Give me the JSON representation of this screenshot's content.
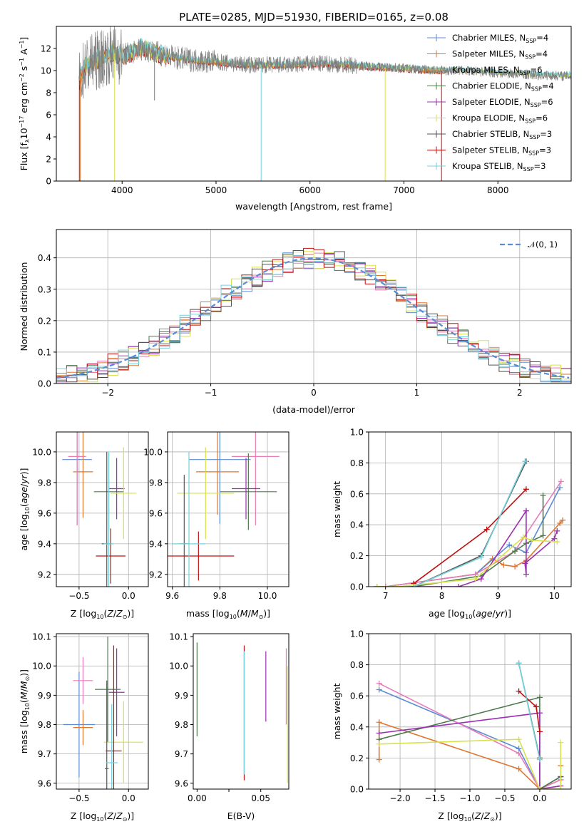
{
  "figure": {
    "title": "PLATE=0285, MJD=51930, FIBERID=0165, z=0.08"
  },
  "colors": {
    "Chabrier MILES": "#5b8bd5",
    "Salpeter MILES": "#dd7733",
    "Kroupa MILES": "#d4a04a",
    "Chabrier ELODIE": "#4c7a4c",
    "Salpeter ELODIE": "#9b30b0",
    "Kroupa ELODIE": "#d8e24a",
    "Chabrier STELIB": "#555555",
    "Salpeter STELIB": "#c01010",
    "Kroupa STELIB": "#74d2dc",
    "normal_fit": "#5b8bd5",
    "data": "#7f7f7f"
  },
  "chart_data": [
    {
      "id": "spectrum",
      "type": "line",
      "title": "PLATE=0285, MJD=51930, FIBERID=0165, z=0.08",
      "xlabel": "wavelength [Angstrom, rest frame]",
      "ylabel": "Flux [f_λ10^-17 erg cm^-2 s^-1 A^-1]",
      "xlim": [
        3300,
        8780
      ],
      "ylim": [
        0,
        14
      ],
      "xticks": [
        4000,
        5000,
        6000,
        7000,
        8000
      ],
      "yticks": [
        0,
        2,
        4,
        6,
        8,
        10,
        12
      ],
      "grid": false,
      "legend": "right",
      "legend_entries": [
        {
          "label": "Chabrier MILES, N",
          "sub": "SSP",
          "suffix": "=4",
          "color": "#5b8bd5"
        },
        {
          "label": "Salpeter MILES, N",
          "sub": "SSP",
          "suffix": "=4",
          "color": "#dd7733"
        },
        {
          "label": "Kroupa MILES, N",
          "sub": "SSP",
          "suffix": "=6",
          "color": "#d4a04a"
        },
        {
          "label": "Chabrier ELODIE, N",
          "sub": "SSP",
          "suffix": "=4",
          "color": "#4c7a4c"
        },
        {
          "label": "Salpeter ELODIE, N",
          "sub": "SSP",
          "suffix": "=6",
          "color": "#9b30b0"
        },
        {
          "label": "Kroupa ELODIE, N",
          "sub": "SSP",
          "suffix": "=6",
          "color": "#d8e24a"
        },
        {
          "label": "Chabrier STELIB, N",
          "sub": "SSP",
          "suffix": "=3",
          "color": "#555555"
        },
        {
          "label": "Salpeter STELIB, N",
          "sub": "SSP",
          "suffix": "=3",
          "color": "#c01010"
        },
        {
          "label": "Kroupa STELIB, N",
          "sub": "SSP",
          "suffix": "=3",
          "color": "#74d2dc"
        }
      ],
      "data_envelope": {
        "x": [
          3540,
          3600,
          3700,
          3800,
          3900,
          4000,
          4100,
          4200,
          4300,
          4400,
          4600,
          4800,
          5000,
          5200,
          5400,
          5600,
          5800,
          6000,
          6200,
          6400,
          6600,
          6800,
          7000,
          7200,
          7400,
          7600,
          7800,
          8000,
          8200,
          8400,
          8780
        ],
        "y": [
          9.0,
          10.3,
          10.8,
          11.2,
          11.6,
          11.4,
          11.6,
          12.0,
          11.8,
          11.5,
          11.1,
          10.9,
          10.8,
          10.6,
          10.5,
          10.5,
          10.5,
          10.6,
          10.6,
          10.5,
          10.4,
          10.3,
          10.2,
          10.1,
          10.0,
          10.0,
          9.9,
          9.8,
          9.7,
          9.6,
          9.5
        ]
      },
      "dips": [
        {
          "x": 3545,
          "y": 0.0,
          "color": "#c01010"
        },
        {
          "x": 3555,
          "y": 0.0,
          "color": "#dd7733"
        },
        {
          "x": 3920,
          "y": 0.0,
          "color": "#d8e24a"
        },
        {
          "x": 4345,
          "y": 7.3,
          "color": "#7f7f7f"
        },
        {
          "x": 5480,
          "y": 0.0,
          "color": "#74d2dc"
        },
        {
          "x": 6800,
          "y": 0.0,
          "color": "#d8e24a"
        },
        {
          "x": 7400,
          "y": 0.0,
          "color": "#c01010"
        }
      ],
      "spec_cutoff": 7420
    },
    {
      "id": "residuals",
      "type": "step",
      "xlabel": "(data-model)/error",
      "ylabel": "Normed distribution",
      "xlim": [
        -2.5,
        2.5
      ],
      "ylim": [
        0,
        0.49
      ],
      "xticks": [
        -2,
        -1,
        0,
        1,
        2
      ],
      "yticks": [
        0.0,
        0.1,
        0.2,
        0.3,
        0.4
      ],
      "grid": true,
      "legend": "top-right",
      "normal_label": "𝒩(0, 1)",
      "bin_width": 0.1,
      "x_start": -2.5
    },
    {
      "id": "age_vs_Z",
      "type": "errorbar",
      "xlabel_main": "Z [log",
      "xlabel_sub": "10",
      "xlabel_rest": "(Z/Z",
      "xlabel_sun": "⊙",
      "xlabel_end": ")]",
      "ylabel": "age  [log10(age/yr)]",
      "xlim": [
        -0.73,
        0.2
      ],
      "ylim": [
        9.12,
        10.13
      ],
      "xticks": [
        -0.5,
        0.0
      ],
      "yticks": [
        9.2,
        9.4,
        9.6,
        9.8,
        10.0
      ],
      "grid": true,
      "points": [
        {
          "x": -0.52,
          "y": 9.95,
          "xerr": 0.15,
          "yerr": 0.43,
          "color": "#5b8bd5"
        },
        {
          "x": -0.46,
          "y": 9.87,
          "xerr": 0.1,
          "yerr": 0.3,
          "color": "#dd7733"
        },
        {
          "x": -0.52,
          "y": 9.97,
          "xerr": 0.09,
          "yerr": 0.45,
          "color": "#e87cb8"
        },
        {
          "x": -0.2,
          "y": 9.74,
          "xerr": 0.15,
          "yerr": 0.25,
          "color": "#4c7a4c"
        },
        {
          "x": -0.12,
          "y": 9.76,
          "xerr": 0.08,
          "yerr": 0.2,
          "color": "#9b30b0"
        },
        {
          "x": -0.05,
          "y": 9.73,
          "xerr": 0.13,
          "yerr": 0.3,
          "color": "#d8e24a"
        },
        {
          "x": -0.22,
          "y": 9.4,
          "xerr": 0.05,
          "yerr": 0.6,
          "color": "#555555"
        },
        {
          "x": -0.18,
          "y": 9.32,
          "xerr": 0.15,
          "yerr": 0.18,
          "color": "#c01010"
        },
        {
          "x": -0.2,
          "y": 9.4,
          "xerr": 0.05,
          "yerr": 0.6,
          "color": "#74d2dc"
        }
      ]
    },
    {
      "id": "age_vs_mass",
      "type": "errorbar",
      "xlabel": "mass [log10(M/M⊙)]",
      "xlim": [
        9.58,
        10.09
      ],
      "ylim": [
        9.12,
        10.13
      ],
      "xticks": [
        9.6,
        9.8,
        10.0
      ],
      "yticks": [
        9.2,
        9.4,
        9.6,
        9.8,
        10.0
      ],
      "grid": true,
      "points": [
        {
          "x": 9.8,
          "y": 9.95,
          "xerr": 0.13,
          "yerr": 0.42,
          "color": "#5b8bd5"
        },
        {
          "x": 9.79,
          "y": 9.87,
          "xerr": 0.09,
          "yerr": 0.28,
          "color": "#dd7733"
        },
        {
          "x": 9.95,
          "y": 9.97,
          "xerr": 0.1,
          "yerr": 0.45,
          "color": "#e87cb8"
        },
        {
          "x": 9.92,
          "y": 9.74,
          "xerr": 0.12,
          "yerr": 0.25,
          "color": "#4c7a4c"
        },
        {
          "x": 9.91,
          "y": 9.76,
          "xerr": 0.06,
          "yerr": 0.2,
          "color": "#9b30b0"
        },
        {
          "x": 9.74,
          "y": 9.73,
          "xerr": 0.12,
          "yerr": 0.3,
          "color": "#d8e24a"
        },
        {
          "x": 9.65,
          "y": 9.4,
          "xerr": 0.02,
          "yerr": 0.45,
          "color": "#555555"
        },
        {
          "x": 9.71,
          "y": 9.32,
          "xerr": 0.15,
          "yerr": 0.16,
          "color": "#c01010"
        },
        {
          "x": 9.67,
          "y": 9.4,
          "xerr": 0.07,
          "yerr": 0.6,
          "color": "#74d2dc"
        }
      ]
    },
    {
      "id": "massweight_vs_age",
      "type": "line",
      "xlabel": "age  [log10(age/yr)]",
      "ylabel": "mass weight",
      "xlim": [
        6.7,
        10.3
      ],
      "ylim": [
        0,
        1.0
      ],
      "xticks": [
        7,
        8,
        9,
        10
      ],
      "yticks": [
        0.0,
        0.2,
        0.4,
        0.6,
        0.8,
        1.0
      ],
      "grid": true,
      "series": [
        {
          "color": "#dd7733",
          "x": [
            6.85,
            7.0,
            8.6,
            8.9,
            9.1,
            9.3,
            9.5,
            10.1,
            10.15
          ],
          "y": [
            0.0,
            0.0,
            0.08,
            0.18,
            0.14,
            0.13,
            0.17,
            0.41,
            0.43
          ]
        },
        {
          "color": "#5b8bd5",
          "x": [
            6.85,
            7.0,
            8.6,
            9.2,
            9.5,
            10.1
          ],
          "y": [
            0.0,
            0.0,
            0.08,
            0.27,
            0.22,
            0.64
          ]
        },
        {
          "color": "#e87cb8",
          "x": [
            7.0,
            8.6,
            9.3,
            10.12
          ],
          "y": [
            0.0,
            0.08,
            0.23,
            0.68
          ]
        },
        {
          "color": "#4c7a4c",
          "x": [
            6.85,
            7.5,
            8.7,
            9.3,
            9.5,
            9.8,
            9.8
          ],
          "y": [
            0.0,
            0.0,
            0.07,
            0.23,
            0.28,
            0.33,
            0.59
          ]
        },
        {
          "color": "#9b30b0",
          "x": [
            7.5,
            8.3,
            8.7,
            9.5,
            9.5,
            9.48,
            10.0,
            10.05
          ],
          "y": [
            0.0,
            0.0,
            0.05,
            0.49,
            0.08,
            0.15,
            0.31,
            0.36
          ]
        },
        {
          "color": "#d8e24a",
          "x": [
            6.85,
            7.2,
            8.6,
            9.45,
            9.6,
            10.05
          ],
          "y": [
            0.0,
            0.0,
            0.05,
            0.32,
            0.3,
            0.29
          ]
        },
        {
          "color": "#555555",
          "x": [
            7.5,
            8.7,
            9.5
          ],
          "y": [
            0.0,
            0.2,
            0.81
          ]
        },
        {
          "color": "#c01010",
          "x": [
            7.5,
            8.8,
            9.5
          ],
          "y": [
            0.02,
            0.37,
            0.63
          ]
        },
        {
          "color": "#74d2dc",
          "x": [
            7.5,
            8.7,
            9.48
          ],
          "y": [
            0.0,
            0.19,
            0.81
          ]
        }
      ]
    },
    {
      "id": "mass_vs_Z",
      "type": "errorbar",
      "xlabel": "Z [log10(Z/Z⊙)]",
      "ylabel": "mass [log10(M/M⊙)]",
      "xlim": [
        -0.73,
        0.2
      ],
      "ylim": [
        9.58,
        10.11
      ],
      "xticks": [
        -0.5,
        0.0
      ],
      "yticks": [
        9.6,
        9.7,
        9.8,
        9.9,
        10.0,
        10.1
      ],
      "grid": true,
      "points": [
        {
          "x": -0.5,
          "y": 9.8,
          "xerr": 0.16,
          "yerr": 0.18,
          "color": "#5b8bd5"
        },
        {
          "x": -0.46,
          "y": 9.79,
          "xerr": 0.1,
          "yerr": 0.06,
          "color": "#dd7733"
        },
        {
          "x": -0.46,
          "y": 9.95,
          "xerr": 0.1,
          "yerr": 0.08,
          "color": "#e87cb8"
        },
        {
          "x": -0.21,
          "y": 9.92,
          "xerr": 0.13,
          "yerr": 0.18,
          "color": "#4c7a4c"
        },
        {
          "x": -0.12,
          "y": 9.91,
          "xerr": 0.08,
          "yerr": 0.15,
          "color": "#9b30b0"
        },
        {
          "x": -0.05,
          "y": 9.74,
          "xerr": 0.2,
          "yerr": 0.14,
          "color": "#d8e24a"
        },
        {
          "x": -0.22,
          "y": 9.65,
          "xerr": 0.02,
          "yerr": 0.3,
          "color": "#555555"
        },
        {
          "x": -0.15,
          "y": 9.71,
          "xerr": 0.08,
          "yerr": 0.36,
          "color": "#c01010"
        },
        {
          "x": -0.17,
          "y": 9.67,
          "xerr": 0.06,
          "yerr": 0.2,
          "color": "#74d2dc"
        }
      ]
    },
    {
      "id": "mass_vs_ebv",
      "type": "errorbar",
      "xlabel": "E(B-V)",
      "xlim": [
        -0.003,
        0.072
      ],
      "ylim": [
        9.58,
        10.11
      ],
      "xticks": [
        0.0,
        0.025,
        0.05
      ],
      "xticklabels": [
        "0.00",
        "",
        "0.05"
      ],
      "yticks": [
        9.6,
        9.7,
        9.8,
        9.9,
        10.0,
        10.1
      ],
      "grid": false,
      "points": [
        {
          "x": 0.0,
          "y": 9.92,
          "xerr": 0,
          "yerr": 0.16,
          "color": "#4c7a4c"
        },
        {
          "x": 0.037,
          "y": 9.84,
          "xerr": 0,
          "yerr": 0.23,
          "color": "#c01010"
        },
        {
          "x": 0.037,
          "y": 9.84,
          "xerr": 0,
          "yerr": 0.21,
          "color": "#74d2dc"
        },
        {
          "x": 0.054,
          "y": 9.93,
          "xerr": 0,
          "yerr": 0.12,
          "color": "#9b30b0"
        },
        {
          "x": 0.07,
          "y": 9.93,
          "xerr": 0,
          "yerr": 0.13,
          "color": "#e87cb8"
        },
        {
          "x": 0.071,
          "y": 9.8,
          "xerr": 0,
          "yerr": 0.2,
          "color": "#d8e24a"
        }
      ]
    },
    {
      "id": "massweight_vs_Z",
      "type": "line",
      "xlabel": "Z [log10(Z/Z⊙)]",
      "ylabel": "mass weight",
      "xlim": [
        -2.45,
        0.45
      ],
      "ylim": [
        0,
        1.0
      ],
      "xticks": [
        -2.0,
        -1.5,
        -1.0,
        -0.5,
        0.0
      ],
      "yticks": [
        0.0,
        0.2,
        0.4,
        0.6,
        0.8,
        1.0
      ],
      "grid": true,
      "series": [
        {
          "color": "#dd7733",
          "x": [
            -2.3,
            -2.3,
            -0.3,
            0.0,
            0.3,
            0.3
          ],
          "y": [
            0.19,
            0.43,
            0.13,
            0.0,
            0.06,
            0.15
          ]
        },
        {
          "color": "#5b8bd5",
          "x": [
            -2.3,
            -0.3,
            0.0,
            0.3
          ],
          "y": [
            0.64,
            0.26,
            0.0,
            0.08
          ]
        },
        {
          "color": "#e87cb8",
          "x": [
            -2.3,
            -0.3,
            0.0,
            0.3
          ],
          "y": [
            0.68,
            0.23,
            0.0,
            0.06
          ]
        },
        {
          "color": "#4c7a4c",
          "x": [
            -2.3,
            0.0,
            0.0,
            0.3
          ],
          "y": [
            0.32,
            0.59,
            0.0,
            0.08
          ]
        },
        {
          "color": "#9b30b0",
          "x": [
            -2.3,
            0.0,
            0.0,
            0.3,
            0.3
          ],
          "y": [
            0.36,
            0.49,
            0.0,
            0.02,
            0.08
          ]
        },
        {
          "color": "#d8e24a",
          "x": [
            -2.3,
            -0.3,
            0.0,
            0.3,
            0.3
          ],
          "y": [
            0.29,
            0.32,
            0.0,
            0.0,
            0.3
          ]
        },
        {
          "color": "#555555",
          "x": [
            -0.3,
            0.0
          ],
          "y": [
            0.81,
            0.2
          ]
        },
        {
          "color": "#c01010",
          "x": [
            -0.3,
            -0.05,
            0.0
          ],
          "y": [
            0.63,
            0.53,
            0.37
          ]
        },
        {
          "color": "#74d2dc",
          "x": [
            -0.3,
            0.0
          ],
          "y": [
            0.81,
            0.19
          ]
        }
      ]
    }
  ]
}
